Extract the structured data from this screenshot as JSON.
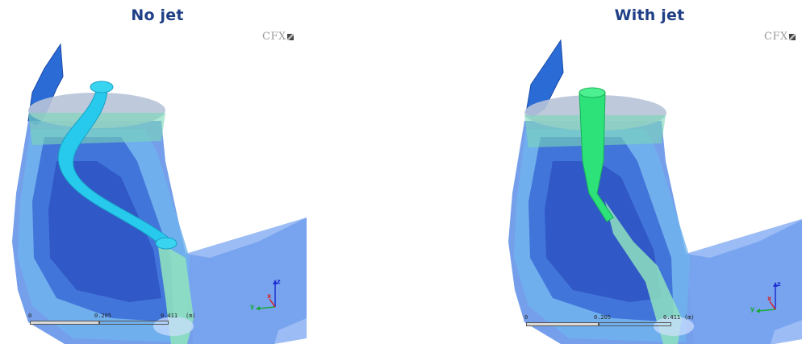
{
  "panels": [
    {
      "title": "No jet",
      "logo": "CFX",
      "scale": {
        "ticks": [
          "0",
          "0.205",
          "0.411",
          "(m)"
        ]
      },
      "axes": {
        "z": "z",
        "y": "y",
        "x": "x"
      }
    },
    {
      "title": "With jet",
      "logo": "CFX",
      "scale": {
        "ticks": [
          "0",
          "0.205",
          "0.411",
          "(m)"
        ]
      },
      "axes": {
        "z": "z",
        "y": "y",
        "x": "x"
      }
    }
  ],
  "colors": {
    "title": "#1f3f86",
    "volume_blue": "#4a7fdc",
    "vortex_cyan": "#27c9ec",
    "jet_green": "#2ee27a",
    "contour_light": "#7ec8e6",
    "contour_green": "#9fe3b4"
  }
}
